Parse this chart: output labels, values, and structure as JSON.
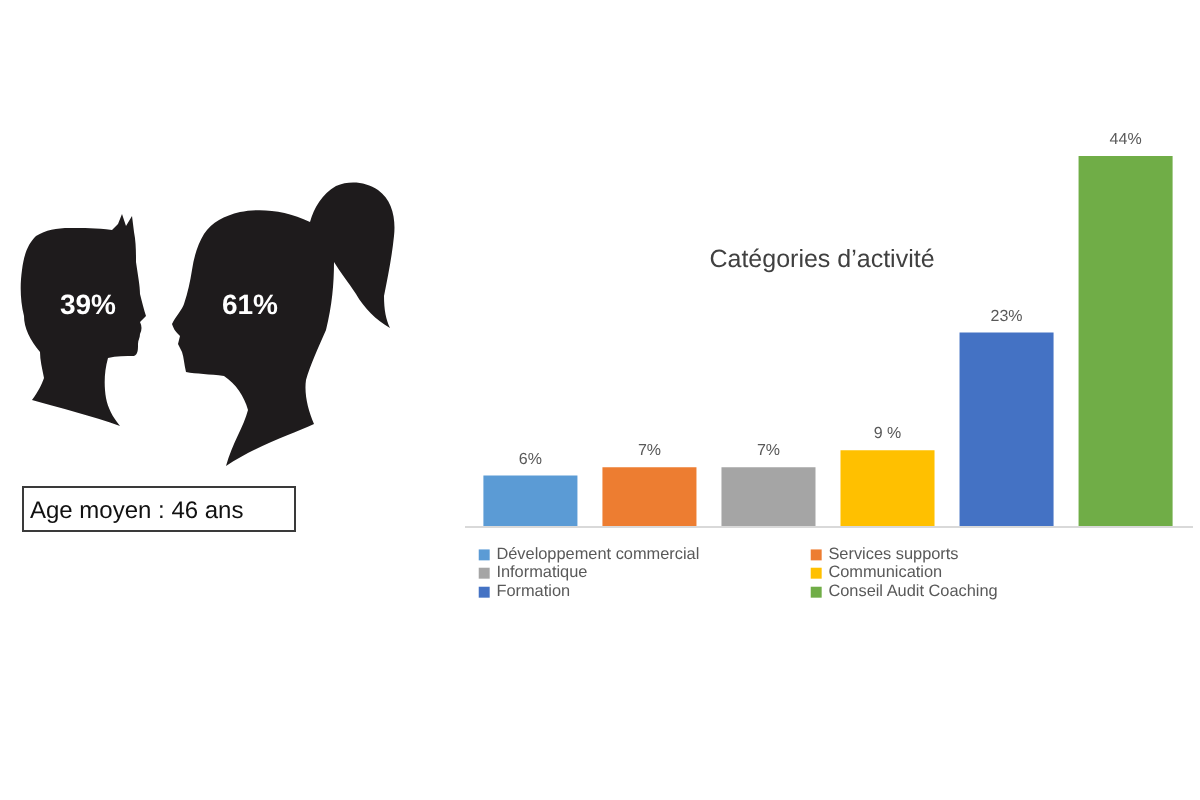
{
  "chart_data": [
    {
      "type": "other",
      "annotations": [
        "39%",
        "61%",
        "Age moyen : 46 ans"
      ]
    },
    {
      "type": "bar",
      "title": "Catégories d’activité",
      "categories": [
        null
      ],
      "series": [
        {
          "name": "Développement commercial",
          "color": "#5b9bd5",
          "values": [
            6
          ],
          "value_labels": [
            "6%"
          ]
        },
        {
          "name": "Services supports",
          "color": "#ed7d31",
          "values": [
            7
          ],
          "value_labels": [
            "7%"
          ]
        },
        {
          "name": "Informatique",
          "color": "#a5a5a5",
          "values": [
            7
          ],
          "value_labels": [
            "7%"
          ]
        },
        {
          "name": "Communication",
          "color": "#ffc000",
          "values": [
            9
          ],
          "value_labels": [
            "9 %"
          ]
        },
        {
          "name": "Formation",
          "color": "#4472c4",
          "values": [
            23
          ],
          "value_labels": [
            "23%"
          ]
        },
        {
          "name": "Conseil Audit Coaching",
          "color": "#70ad47",
          "values": [
            44
          ],
          "value_labels": [
            "44%"
          ]
        }
      ],
      "legend": "bottom",
      "tick_labels": false
    }
  ]
}
